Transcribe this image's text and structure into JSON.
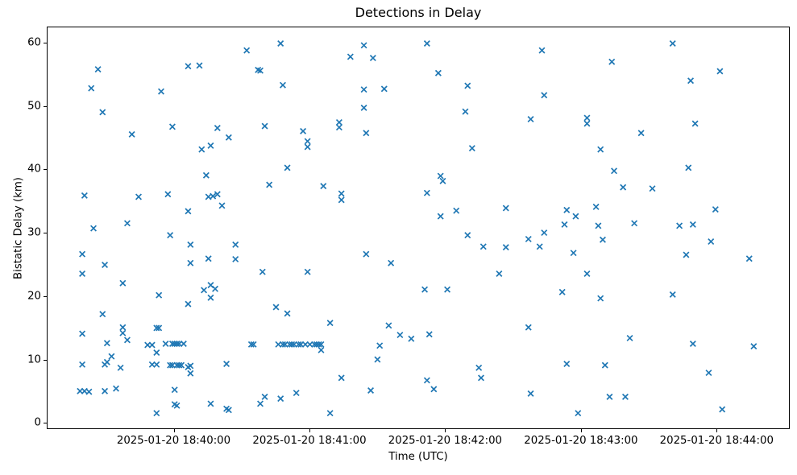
{
  "chart_data": {
    "type": "scatter",
    "title": "Detections in Delay",
    "xlabel": "Time (UTC)",
    "ylabel": "Bistatic Delay (km)",
    "marker": "x",
    "marker_color": "#1f77b4",
    "grid": false,
    "legend": null,
    "x_unit": "seconds after 2025-01-20 18:40:00 UTC",
    "xlim": [
      -56.1,
      272.3
    ],
    "ylim": [
      -1.0,
      62.55
    ],
    "x_ticks": [
      {
        "t": 0,
        "label": "2025-01-20 18:40:00"
      },
      {
        "t": 60,
        "label": "2025-01-20 18:41:00"
      },
      {
        "t": 120,
        "label": "2025-01-20 18:42:00"
      },
      {
        "t": 180,
        "label": "2025-01-20 18:43:00"
      },
      {
        "t": 240,
        "label": "2025-01-20 18:44:00"
      }
    ],
    "y_ticks": [
      0,
      10,
      20,
      30,
      40,
      50,
      60
    ],
    "points": [
      [
        -34,
        55.9
      ],
      [
        -37,
        52.9
      ],
      [
        -6,
        52.4
      ],
      [
        6,
        56.4
      ],
      [
        11,
        56.5
      ],
      [
        -32,
        49.1
      ],
      [
        -1,
        46.8
      ],
      [
        19,
        46.6
      ],
      [
        24,
        45.1
      ],
      [
        -19,
        45.6
      ],
      [
        12,
        43.2
      ],
      [
        16,
        43.8
      ],
      [
        14,
        39.1
      ],
      [
        -40,
        35.9
      ],
      [
        -16,
        35.7
      ],
      [
        -3,
        36.1
      ],
      [
        15,
        35.7
      ],
      [
        17,
        35.8
      ],
      [
        19,
        36.1
      ],
      [
        21,
        34.3
      ],
      [
        6,
        33.4
      ],
      [
        -21,
        31.5
      ],
      [
        -36,
        30.7
      ],
      [
        47,
        60.0
      ],
      [
        32,
        58.9
      ],
      [
        84,
        59.7
      ],
      [
        78,
        57.9
      ],
      [
        88,
        57.7
      ],
      [
        37,
        55.8
      ],
      [
        38,
        55.7
      ],
      [
        48,
        53.4
      ],
      [
        84,
        52.7
      ],
      [
        93,
        52.8
      ],
      [
        84,
        49.8
      ],
      [
        40,
        46.9
      ],
      [
        57,
        46.1
      ],
      [
        73,
        47.5
      ],
      [
        73,
        46.7
      ],
      [
        85,
        45.8
      ],
      [
        59,
        44.5
      ],
      [
        59,
        43.6
      ],
      [
        50,
        40.3
      ],
      [
        42,
        37.6
      ],
      [
        66,
        37.4
      ],
      [
        74,
        36.2
      ],
      [
        74,
        35.2
      ],
      [
        112,
        60.0
      ],
      [
        163,
        58.9
      ],
      [
        117,
        55.3
      ],
      [
        130,
        53.3
      ],
      [
        164,
        51.8
      ],
      [
        129,
        49.2
      ],
      [
        158,
        48.0
      ],
      [
        183,
        48.2
      ],
      [
        183,
        47.3
      ],
      [
        132,
        43.4
      ],
      [
        189,
        43.2
      ],
      [
        118,
        39.0
      ],
      [
        119,
        38.2
      ],
      [
        112,
        36.3
      ],
      [
        125,
        33.5
      ],
      [
        118,
        32.6
      ],
      [
        147,
        33.9
      ],
      [
        174,
        33.6
      ],
      [
        178,
        32.6
      ],
      [
        187,
        34.1
      ],
      [
        173,
        31.3
      ],
      [
        188,
        31.1
      ],
      [
        221,
        60.0
      ],
      [
        194,
        57.1
      ],
      [
        242,
        55.6
      ],
      [
        229,
        54.1
      ],
      [
        231,
        47.3
      ],
      [
        207,
        45.8
      ],
      [
        228,
        40.3
      ],
      [
        195,
        39.8
      ],
      [
        199,
        37.2
      ],
      [
        212,
        37.0
      ],
      [
        240,
        33.7
      ],
      [
        204,
        31.5
      ],
      [
        224,
        31.1
      ],
      [
        230,
        31.3
      ],
      [
        -2,
        29.6
      ],
      [
        7,
        28.1
      ],
      [
        -41,
        26.6
      ],
      [
        27,
        28.1
      ],
      [
        15,
        25.9
      ],
      [
        7,
        25.2
      ],
      [
        27,
        25.8
      ],
      [
        -31,
        24.9
      ],
      [
        -41,
        23.5
      ],
      [
        -23,
        22.0
      ],
      [
        -7,
        20.1
      ],
      [
        13,
        20.9
      ],
      [
        16,
        21.7
      ],
      [
        18,
        21.1
      ],
      [
        16,
        19.7
      ],
      [
        6,
        18.7
      ],
      [
        -32,
        17.1
      ],
      [
        -23,
        15.0
      ],
      [
        -23,
        14.1
      ],
      [
        -21,
        13.0
      ],
      [
        -41,
        14.0
      ],
      [
        -30,
        12.5
      ],
      [
        -8,
        14.9
      ],
      [
        -7,
        14.9
      ],
      [
        -12,
        12.2
      ],
      [
        -10,
        12.2
      ],
      [
        -4,
        12.4
      ],
      [
        -1,
        12.4
      ],
      [
        0,
        12.4
      ],
      [
        1,
        12.4
      ],
      [
        2,
        12.4
      ],
      [
        4,
        12.4
      ],
      [
        -8,
        11.0
      ],
      [
        -28,
        10.4
      ],
      [
        -30,
        9.5
      ],
      [
        -41,
        9.1
      ],
      [
        -31,
        9.1
      ],
      [
        -24,
        8.6
      ],
      [
        -10,
        9.1
      ],
      [
        -8,
        9.1
      ],
      [
        -2,
        9.0
      ],
      [
        -1,
        9.0
      ],
      [
        1,
        9.0
      ],
      [
        2,
        9.0
      ],
      [
        3,
        9.0
      ],
      [
        6,
        8.7
      ],
      [
        7,
        8.9
      ],
      [
        7,
        7.7
      ],
      [
        23,
        9.2
      ],
      [
        -42,
        4.9
      ],
      [
        -40,
        4.9
      ],
      [
        -38,
        4.8
      ],
      [
        -31,
        4.9
      ],
      [
        -26,
        5.3
      ],
      [
        0,
        5.1
      ],
      [
        0,
        2.8
      ],
      [
        1,
        2.6
      ],
      [
        16,
        2.9
      ],
      [
        -8,
        1.4
      ],
      [
        23,
        2.1
      ],
      [
        24,
        1.9
      ],
      [
        85,
        26.6
      ],
      [
        96,
        25.2
      ],
      [
        39,
        23.8
      ],
      [
        59,
        23.8
      ],
      [
        45,
        18.2
      ],
      [
        50,
        17.2
      ],
      [
        69,
        15.7
      ],
      [
        95,
        15.3
      ],
      [
        100,
        13.8
      ],
      [
        105,
        13.2
      ],
      [
        34,
        12.3
      ],
      [
        35,
        12.3
      ],
      [
        46,
        12.3
      ],
      [
        48,
        12.3
      ],
      [
        49,
        12.3
      ],
      [
        51,
        12.3
      ],
      [
        52,
        12.3
      ],
      [
        53,
        12.3
      ],
      [
        55,
        12.3
      ],
      [
        56,
        12.3
      ],
      [
        58,
        12.3
      ],
      [
        60,
        12.3
      ],
      [
        62,
        12.3
      ],
      [
        63,
        12.3
      ],
      [
        64,
        12.3
      ],
      [
        65,
        12.3
      ],
      [
        65,
        11.4
      ],
      [
        91,
        12.1
      ],
      [
        90,
        9.9
      ],
      [
        74,
        7.0
      ],
      [
        87,
        5.0
      ],
      [
        40,
        4.0
      ],
      [
        38,
        2.9
      ],
      [
        47,
        3.7
      ],
      [
        54,
        4.6
      ],
      [
        69,
        1.4
      ],
      [
        130,
        29.6
      ],
      [
        164,
        30.0
      ],
      [
        157,
        29.0
      ],
      [
        162,
        27.8
      ],
      [
        137,
        27.8
      ],
      [
        147,
        27.7
      ],
      [
        177,
        26.8
      ],
      [
        190,
        28.9
      ],
      [
        144,
        23.5
      ],
      [
        183,
        23.5
      ],
      [
        111,
        21.0
      ],
      [
        121,
        21.0
      ],
      [
        172,
        20.6
      ],
      [
        189,
        19.6
      ],
      [
        157,
        15.0
      ],
      [
        113,
        13.9
      ],
      [
        135,
        8.6
      ],
      [
        136,
        7.0
      ],
      [
        174,
        9.2
      ],
      [
        191,
        9.0
      ],
      [
        112,
        6.6
      ],
      [
        115,
        5.2
      ],
      [
        158,
        4.5
      ],
      [
        179,
        1.4
      ],
      [
        238,
        28.6
      ],
      [
        227,
        26.5
      ],
      [
        255,
        25.9
      ],
      [
        221,
        20.2
      ],
      [
        202,
        13.3
      ],
      [
        230,
        12.4
      ],
      [
        257,
        12.0
      ],
      [
        237,
        7.8
      ],
      [
        193,
        4.0
      ],
      [
        200,
        4.0
      ],
      [
        243,
        2.0
      ]
    ]
  }
}
